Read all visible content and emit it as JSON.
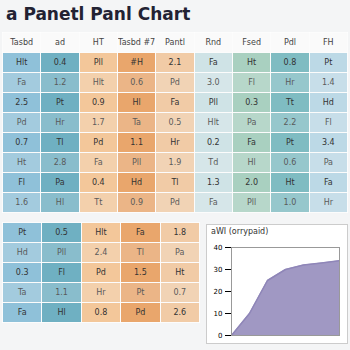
{
  "title": "a Panetl Panl Chart",
  "table": {
    "column_colors": [
      "#8fc1d9",
      "#6fb0c2",
      "#f3c79a",
      "#e9a66c",
      "#f1cba6",
      "#cfe3e6",
      "#a9d0c0",
      "#7fbcc2",
      "#bcd9e6"
    ],
    "header": [
      "Tasbd",
      "ad",
      "HT",
      "Tasbd #7",
      "Pantl",
      "Rnd",
      "Fsed",
      "Pdl",
      "FH"
    ],
    "rows": [
      [
        "Hlt",
        "0.4",
        "Pll",
        "#H",
        "2.1",
        "Fa",
        "Ht",
        "0.8",
        "Pt"
      ],
      [
        "Fa",
        "1.2",
        "Hlt",
        "0.6",
        "Pd",
        "3.0",
        "Fl",
        "Hr",
        "1.4"
      ],
      [
        "2.5",
        "Pt",
        "0.9",
        "Hl",
        "Fa",
        "Pll",
        "0.3",
        "Tt",
        "Hd"
      ],
      [
        "Pd",
        "Hr",
        "1.7",
        "Ta",
        "0.5",
        "Hlt",
        "Pa",
        "2.2",
        "Fl"
      ],
      [
        "0.7",
        "Tl",
        "Pd",
        "1.1",
        "Hr",
        "0.2",
        "Fa",
        "Pt",
        "3.4"
      ],
      [
        "Ht",
        "2.8",
        "Fa",
        "Pll",
        "1.9",
        "Td",
        "Hl",
        "0.6",
        "Pa"
      ],
      [
        "Fl",
        "Pa",
        "0.4",
        "Hd",
        "Tl",
        "1.3",
        "2.0",
        "Ht",
        "Fa"
      ],
      [
        "1.6",
        "Hl",
        "Tt",
        "0.9",
        "Pd",
        "Fa",
        "Pll",
        "1.0",
        "Hr"
      ]
    ],
    "lower_rows": [
      [
        "Pt",
        "0.5",
        "Hlt",
        "Fa",
        "1.8"
      ],
      [
        "Hd",
        "Pll",
        "2.4",
        "Tl",
        "Pa"
      ],
      [
        "0.3",
        "Fl",
        "Pd",
        "1.5",
        "Ht"
      ],
      [
        "Ta",
        "1.1",
        "Hr",
        "Pt",
        "0.7"
      ],
      [
        "Fa",
        "Hl",
        "0.8",
        "Pd",
        "2.6"
      ]
    ]
  },
  "chart_data": {
    "type": "area",
    "title": "aWI (orrypaid)",
    "x": [
      0,
      1,
      2,
      3,
      4,
      5,
      6
    ],
    "values": [
      0,
      10,
      25,
      30,
      32,
      33,
      34
    ],
    "color": "#8f86b8",
    "xlim": [
      0,
      6
    ],
    "ylim": [
      0,
      40
    ],
    "yticks": [
      0,
      10,
      20,
      30,
      40
    ],
    "tick_labels": "y"
  }
}
